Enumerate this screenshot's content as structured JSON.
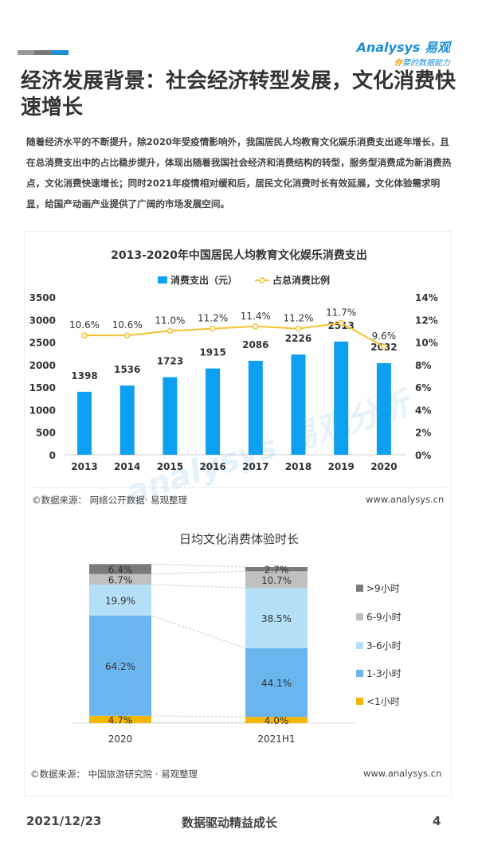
{
  "header": {
    "logo_text": "Analysys 易观",
    "logo_slogan": "你要的数据能力",
    "title": "经济发展背景：社会经济转型发展，文化消费快速增长",
    "colors": [
      "#999999",
      "#777777",
      "#1a8fd6"
    ]
  },
  "paragraph": "随着经济水平的不断提升，除2020年受疫情影响外，我国居民人均教育文化娱乐消费支出逐年增长，且在总消费支出中的占比稳步提升，体现出随着我国社会经济和消费结构的转型，服务型消费成为新消费热点，文化消费快速增长；同时2021年疫情相对缓和后，居民文化消费时长有效延展，文化体验需求明显，给国产动画产业提供了广阔的市场发展空间。",
  "watermark": "Analysys 易观分析",
  "chart_data": [
    {
      "type": "bar",
      "title": "2013-2020年中国居民人均教育文化娱乐消费支出",
      "categories": [
        "2013",
        "2014",
        "2015",
        "2016",
        "2017",
        "2018",
        "2019",
        "2020"
      ],
      "series": [
        {
          "name": "消费支出（元）",
          "type": "bar",
          "color": "#0ea0f0",
          "values": [
            1398,
            1536,
            1723,
            1915,
            2086,
            2226,
            2513,
            2032
          ]
        },
        {
          "name": "占总消费比例",
          "type": "line",
          "color": "#f2c230",
          "values": [
            10.6,
            10.6,
            11.0,
            11.2,
            11.4,
            11.2,
            11.7,
            9.6
          ],
          "labels": [
            "10.6%",
            "10.6%",
            "11.0%",
            "11.2%",
            "11.4%",
            "11.2%",
            "11.7%",
            "9.6%"
          ]
        }
      ],
      "ylim": [
        0,
        3500
      ],
      "yticks": [
        "0",
        "500",
        "1000",
        "1500",
        "2000",
        "2500",
        "3000",
        "3500"
      ],
      "y2lim": [
        0,
        14
      ],
      "y2ticks": [
        "0%",
        "2%",
        "4%",
        "6%",
        "8%",
        "10%",
        "12%",
        "14%"
      ],
      "legend": "top"
    },
    {
      "type": "bar",
      "stacked": true,
      "title": "日均文化消费体验时长",
      "categories": [
        "2020",
        "2021H1"
      ],
      "series": [
        {
          "name": "<1小时",
          "color": "#f5b800",
          "values": [
            4.7,
            4.0
          ]
        },
        {
          "name": "1-3小时",
          "color": "#6bb5ef",
          "values": [
            64.2,
            44.1
          ]
        },
        {
          "name": "3-6小时",
          "color": "#b3e0f7",
          "values": [
            19.9,
            38.5
          ]
        },
        {
          "name": "6-9小时",
          "color": "#c0c0c0",
          "values": [
            6.7,
            10.7
          ]
        },
        {
          "name": ">9小时",
          "color": "#7a7a7a",
          "values": [
            6.4,
            2.7
          ]
        }
      ],
      "legend": "right"
    }
  ],
  "sources": [
    {
      "left": "©数据来源： 网络公开数据· 易观整理",
      "right": "www.analysys.cn"
    },
    {
      "left": "©数据来源： 中国旅游研究院 · 易观整理",
      "right": "www.analysys.cn"
    }
  ],
  "footer": {
    "date": "2021/12/23",
    "slogan": "数据驱动精益成长",
    "page": "4"
  }
}
